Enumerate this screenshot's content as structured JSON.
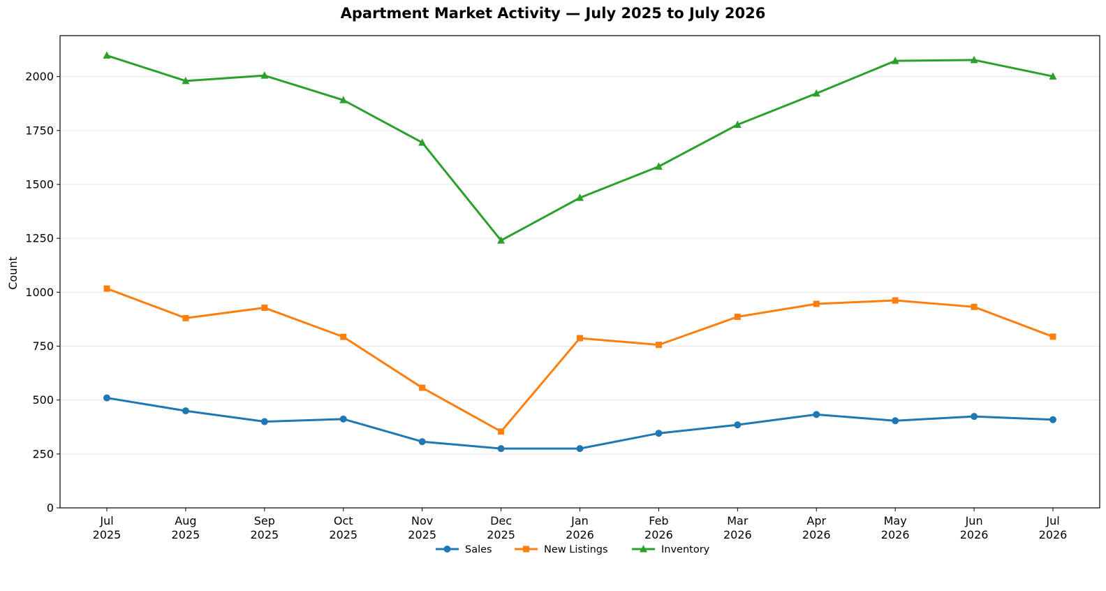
{
  "chart_data": {
    "type": "line",
    "title": "Apartment Market Activity — July 2025 to July 2026",
    "xlabel": "",
    "ylabel": "Count",
    "x": [
      {
        "month": "Jul",
        "year": "2025"
      },
      {
        "month": "Aug",
        "year": "2025"
      },
      {
        "month": "Sep",
        "year": "2025"
      },
      {
        "month": "Oct",
        "year": "2025"
      },
      {
        "month": "Nov",
        "year": "2025"
      },
      {
        "month": "Dec",
        "year": "2025"
      },
      {
        "month": "Jan",
        "year": "2026"
      },
      {
        "month": "Feb",
        "year": "2026"
      },
      {
        "month": "Mar",
        "year": "2026"
      },
      {
        "month": "Apr",
        "year": "2026"
      },
      {
        "month": "May",
        "year": "2026"
      },
      {
        "month": "Jun",
        "year": "2026"
      },
      {
        "month": "Jul",
        "year": "2026"
      }
    ],
    "ylim": [
      0,
      2190
    ],
    "yticks": [
      0,
      250,
      500,
      750,
      1000,
      1250,
      1500,
      1750,
      2000
    ],
    "grid": "horizontal",
    "legend_position": "bottom-center",
    "series": [
      {
        "name": "Sales",
        "color": "#1f77b4",
        "marker": "circle",
        "values": [
          510,
          450,
          400,
          412,
          307,
          275,
          275,
          346,
          385,
          433,
          404,
          424,
          409
        ]
      },
      {
        "name": "New Listings",
        "color": "#ff7f0e",
        "marker": "square",
        "values": [
          1017,
          880,
          928,
          793,
          557,
          354,
          787,
          756,
          886,
          946,
          962,
          932,
          794
        ]
      },
      {
        "name": "Inventory",
        "color": "#2ca02c",
        "marker": "triangle",
        "values": [
          2098,
          1980,
          2005,
          1891,
          1694,
          1240,
          1438,
          1583,
          1777,
          1922,
          2073,
          2077,
          2001
        ]
      }
    ]
  }
}
